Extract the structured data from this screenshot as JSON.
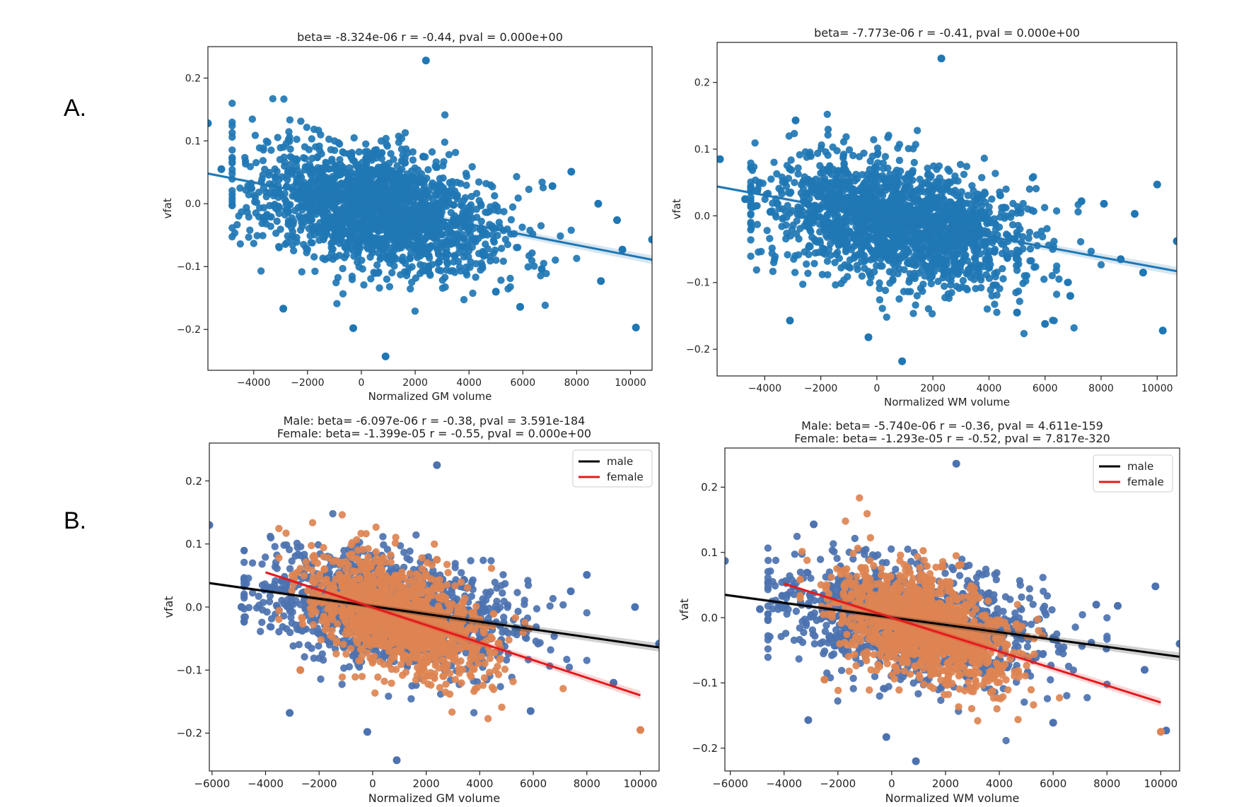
{
  "panel_labels": [
    "A.",
    "B."
  ],
  "chart_data": [
    {
      "type": "scatter",
      "title": "beta= -8.324e-06 r = -0.44, pval = 0.000e+00",
      "xlabel": "Normalized GM volume",
      "ylabel": "vfat",
      "xlim": [
        -5700,
        10800
      ],
      "ylim": [
        -0.265,
        0.25
      ],
      "xticks": [
        -4000,
        -2000,
        0,
        2000,
        4000,
        6000,
        8000,
        10000
      ],
      "yticks": [
        -0.2,
        -0.1,
        0.0,
        0.1,
        0.2
      ],
      "grid": false,
      "legend": null,
      "cloud": [
        {
          "color": "#1f77b4",
          "n": 1900,
          "cx": 500,
          "sx": 2300,
          "cy": -0.01,
          "sy": 0.045,
          "slope": -8.3e-06,
          "xmin": -4800,
          "xmax": 8000
        }
      ],
      "series": [
        {
          "color": "#1f77b4",
          "points": [
            [
              -5700,
              0.128
            ],
            [
              2400,
              0.228
            ],
            [
              2300,
              0.075
            ],
            [
              -2900,
              -0.167
            ],
            [
              -300,
              -0.198
            ],
            [
              900,
              -0.243
            ],
            [
              10200,
              -0.197
            ],
            [
              10800,
              -0.057
            ],
            [
              9700,
              -0.073
            ],
            [
              7800,
              0.051
            ],
            [
              8800,
              0.0
            ],
            [
              9500,
              -0.026
            ],
            [
              8900,
              -0.123
            ],
            [
              5900,
              -0.164
            ],
            [
              6700,
              -0.104
            ],
            [
              -5200,
              0.055
            ],
            [
              -4100,
              0.025
            ],
            [
              5000,
              -0.14
            ],
            [
              7100,
              0.028
            ]
          ]
        }
      ],
      "regression": [
        {
          "color": "#1f77b4",
          "x": [
            -5700,
            10800
          ],
          "y": [
            0.048,
            -0.089
          ]
        }
      ]
    },
    {
      "type": "scatter",
      "title": "beta= -7.773e-06 r = -0.41, pval = 0.000e+00",
      "xlabel": "Normalized WM volume",
      "ylabel": "vfat",
      "xlim": [
        -5700,
        10700
      ],
      "ylim": [
        -0.24,
        0.26
      ],
      "xticks": [
        -4000,
        -2000,
        0,
        2000,
        4000,
        6000,
        8000,
        10000
      ],
      "yticks": [
        -0.2,
        -0.1,
        0.0,
        0.1,
        0.2
      ],
      "grid": false,
      "legend": null,
      "cloud": [
        {
          "color": "#1f77b4",
          "n": 1900,
          "cx": 800,
          "sx": 2300,
          "cy": -0.01,
          "sy": 0.045,
          "slope": -7.8e-06,
          "xmin": -4500,
          "xmax": 8000
        }
      ],
      "series": [
        {
          "color": "#1f77b4",
          "points": [
            [
              -5600,
              0.085
            ],
            [
              2300,
              0.236
            ],
            [
              -2900,
              0.143
            ],
            [
              -3100,
              -0.157
            ],
            [
              -300,
              -0.182
            ],
            [
              900,
              -0.218
            ],
            [
              10200,
              -0.172
            ],
            [
              10700,
              -0.038
            ],
            [
              9500,
              -0.085
            ],
            [
              10000,
              0.047
            ],
            [
              8100,
              0.018
            ],
            [
              9200,
              0.003
            ],
            [
              8700,
              -0.065
            ],
            [
              6000,
              -0.162
            ],
            [
              6900,
              -0.12
            ],
            [
              -4700,
              0.025
            ],
            [
              -3800,
              0.006
            ],
            [
              5000,
              -0.145
            ],
            [
              7300,
              0.022
            ]
          ]
        }
      ],
      "regression": [
        {
          "color": "#1f77b4",
          "x": [
            -5700,
            10700
          ],
          "y": [
            0.044,
            -0.083
          ]
        }
      ]
    },
    {
      "type": "scatter",
      "title": "Male: beta= -6.097e-06 r = -0.38, pval = 3.591e-184",
      "subtitle": "Female: beta= -1.399e-05 r = -0.55, pval = 0.000e+00",
      "xlabel": "Normalized GM volume",
      "ylabel": "vfat",
      "xlim": [
        -6100,
        10700
      ],
      "ylim": [
        -0.26,
        0.26
      ],
      "xticks": [
        -6000,
        -4000,
        -2000,
        0,
        2000,
        4000,
        6000,
        8000,
        10000
      ],
      "yticks": [
        -0.2,
        -0.1,
        0.0,
        0.1,
        0.2
      ],
      "grid": false,
      "legend": {
        "position": "top-right",
        "entries": [
          {
            "label": "male",
            "color": "#000000"
          },
          {
            "label": "female",
            "color": "#e31a1c"
          }
        ]
      },
      "cloud": [
        {
          "color": "#4c72b0",
          "n": 1300,
          "cx": 500,
          "sx": 2400,
          "cy": -0.005,
          "sy": 0.042,
          "slope": -6.1e-06,
          "xmin": -4800,
          "xmax": 8000
        },
        {
          "color": "#dd8452",
          "n": 1300,
          "cx": 1000,
          "sx": 1600,
          "cy": -0.015,
          "sy": 0.04,
          "slope": -1.4e-05,
          "xmin": -3500,
          "xmax": 8000
        }
      ],
      "series": [
        {
          "color": "#4c72b0",
          "points": [
            [
              -6100,
              0.13
            ],
            [
              2400,
              0.225
            ],
            [
              -3100,
              -0.168
            ],
            [
              -200,
              -0.198
            ],
            [
              900,
              -0.243
            ],
            [
              10700,
              -0.058
            ],
            [
              9800,
              0.0
            ],
            [
              8000,
              0.051
            ],
            [
              9000,
              -0.12
            ],
            [
              5900,
              -0.165
            ],
            [
              -4900,
              0.0
            ],
            [
              7400,
              0.025
            ]
          ]
        },
        {
          "color": "#dd8452",
          "points": [
            [
              10000,
              -0.195
            ],
            [
              2400,
              0.075
            ],
            [
              -1800,
              0.06
            ],
            [
              -2700,
              -0.1
            ]
          ]
        }
      ],
      "regression": [
        {
          "name": "male",
          "color": "#000000",
          "x": [
            -6100,
            10700
          ],
          "y": [
            0.038,
            -0.064
          ]
        },
        {
          "name": "female",
          "color": "#e31a1c",
          "x": [
            -4000,
            10000
          ],
          "y": [
            0.055,
            -0.14
          ]
        }
      ]
    },
    {
      "type": "scatter",
      "title": "Male: beta= -5.740e-06 r = -0.36, pval = 4.611e-159",
      "subtitle": "Female: beta= -1.293e-05 r = -0.52, pval = 7.817e-320",
      "xlabel": "Normalized WM volume",
      "ylabel": "vfat",
      "xlim": [
        -6200,
        10700
      ],
      "ylim": [
        -0.235,
        0.26
      ],
      "xticks": [
        -6000,
        -4000,
        -2000,
        0,
        2000,
        4000,
        6000,
        8000,
        10000
      ],
      "yticks": [
        -0.2,
        -0.1,
        0.0,
        0.1,
        0.2
      ],
      "grid": false,
      "legend": {
        "position": "top-right",
        "entries": [
          {
            "label": "male",
            "color": "#000000"
          },
          {
            "label": "female",
            "color": "#e31a1c"
          }
        ]
      },
      "cloud": [
        {
          "color": "#4c72b0",
          "n": 1300,
          "cx": 700,
          "sx": 2400,
          "cy": -0.005,
          "sy": 0.042,
          "slope": -5.7e-06,
          "xmin": -4600,
          "xmax": 8000
        },
        {
          "color": "#dd8452",
          "n": 1300,
          "cx": 1200,
          "sx": 1600,
          "cy": -0.015,
          "sy": 0.04,
          "slope": -1.3e-05,
          "xmin": -3400,
          "xmax": 8000
        }
      ],
      "series": [
        {
          "color": "#4c72b0",
          "points": [
            [
              -6200,
              0.087
            ],
            [
              2400,
              0.236
            ],
            [
              -2900,
              0.143
            ],
            [
              -3100,
              -0.157
            ],
            [
              -200,
              -0.183
            ],
            [
              900,
              -0.22
            ],
            [
              10200,
              -0.173
            ],
            [
              10700,
              -0.04
            ],
            [
              9800,
              0.048
            ],
            [
              8400,
              0.018
            ],
            [
              9400,
              -0.08
            ],
            [
              6000,
              -0.161
            ],
            [
              -4900,
              0.013
            ],
            [
              7600,
              0.02
            ]
          ]
        },
        {
          "color": "#dd8452",
          "points": [
            [
              10000,
              -0.175
            ],
            [
              2500,
              0.08
            ],
            [
              -1800,
              0.072
            ],
            [
              -2500,
              -0.095
            ]
          ]
        }
      ],
      "regression": [
        {
          "name": "male",
          "color": "#000000",
          "x": [
            -6200,
            10700
          ],
          "y": [
            0.035,
            -0.06
          ]
        },
        {
          "name": "female",
          "color": "#e31a1c",
          "x": [
            -4000,
            10000
          ],
          "y": [
            0.052,
            -0.13
          ]
        }
      ]
    }
  ]
}
